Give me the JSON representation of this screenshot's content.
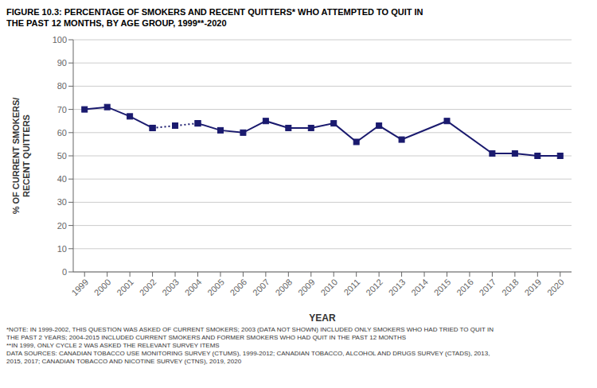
{
  "chart_data": {
    "type": "line",
    "title": "FIGURE 10.3: PERCENTAGE OF SMOKERS AND RECENT QUITTERS* WHO ATTEMPTED TO QUIT IN\nTHE PAST 12 MONTHS, BY AGE GROUP, 1999**-2020",
    "x_label": "YEAR",
    "y_label": "% OF CURRENT SMOKERS/\nRECENT QUITTERS",
    "annotations": [
      "*NOTE: IN 1999-2002, THIS QUESTION WAS ASKED OF CURRENT SMOKERS; 2003 (DATA NOT SHOWN) INCLUDED ONLY SMOKERS WHO HAD TRIED TO QUIT IN\nTHE PAST 2 YEARS; 2004-2015 INCLUDED CURRENT SMOKERS AND FORMER SMOKERS WHO HAD QUIT IN THE PAST 12 MONTHS\n**IN 1999, ONLY CYCLE 2 WAS ASKED THE RELEVANT SURVEY ITEMS\nDATA SOURCES: CANADIAN TOBACCO USE MONITORING SURVEY (CTUMS), 1999-2012; CANADIAN TOBACCO, ALCOHOL AND DRUGS SURVEY (CTADS), 2013,\n2015, 2017; CANADIAN TOBACCO AND NICOTINE SURVEY (CTNS), 2019, 2020"
    ],
    "x": [
      1999,
      2000,
      2001,
      2002,
      2003,
      2004,
      2005,
      2006,
      2007,
      2008,
      2009,
      2010,
      2011,
      2012,
      2013,
      2015,
      2017,
      2018,
      2019,
      2020
    ],
    "series": [
      {
        "color": "#1a1a6e",
        "line_style": "solid",
        "marker": "square",
        "values": [
          70,
          71,
          67,
          62,
          null,
          null,
          null,
          null,
          null,
          null,
          null,
          null,
          null,
          null,
          null,
          null,
          null,
          null,
          null,
          null
        ]
      },
      {
        "color": "#1a1a6e",
        "line_style": "dotted",
        "marker": "square",
        "values": [
          null,
          null,
          null,
          62,
          63,
          64,
          null,
          null,
          null,
          null,
          null,
          null,
          null,
          null,
          null,
          null,
          null,
          null,
          null,
          null
        ]
      },
      {
        "color": "#1a1a6e",
        "line_style": "solid",
        "marker": "square",
        "values": [
          null,
          null,
          null,
          null,
          null,
          64,
          61,
          60,
          65,
          62,
          62,
          64,
          56,
          63,
          57,
          65,
          51,
          51,
          50,
          50
        ]
      }
    ],
    "xlim": [
      1998.5,
      2020.5
    ],
    "xticks": [
      1999,
      2000,
      2001,
      2002,
      2003,
      2004,
      2005,
      2006,
      2007,
      2008,
      2009,
      2010,
      2011,
      2012,
      2013,
      2014,
      2015,
      2016,
      2017,
      2018,
      2019,
      2020
    ],
    "ylim": [
      0,
      100
    ],
    "yticks": [
      0,
      10,
      20,
      30,
      40,
      50,
      60,
      70,
      80,
      90,
      100
    ],
    "grid": true
  }
}
